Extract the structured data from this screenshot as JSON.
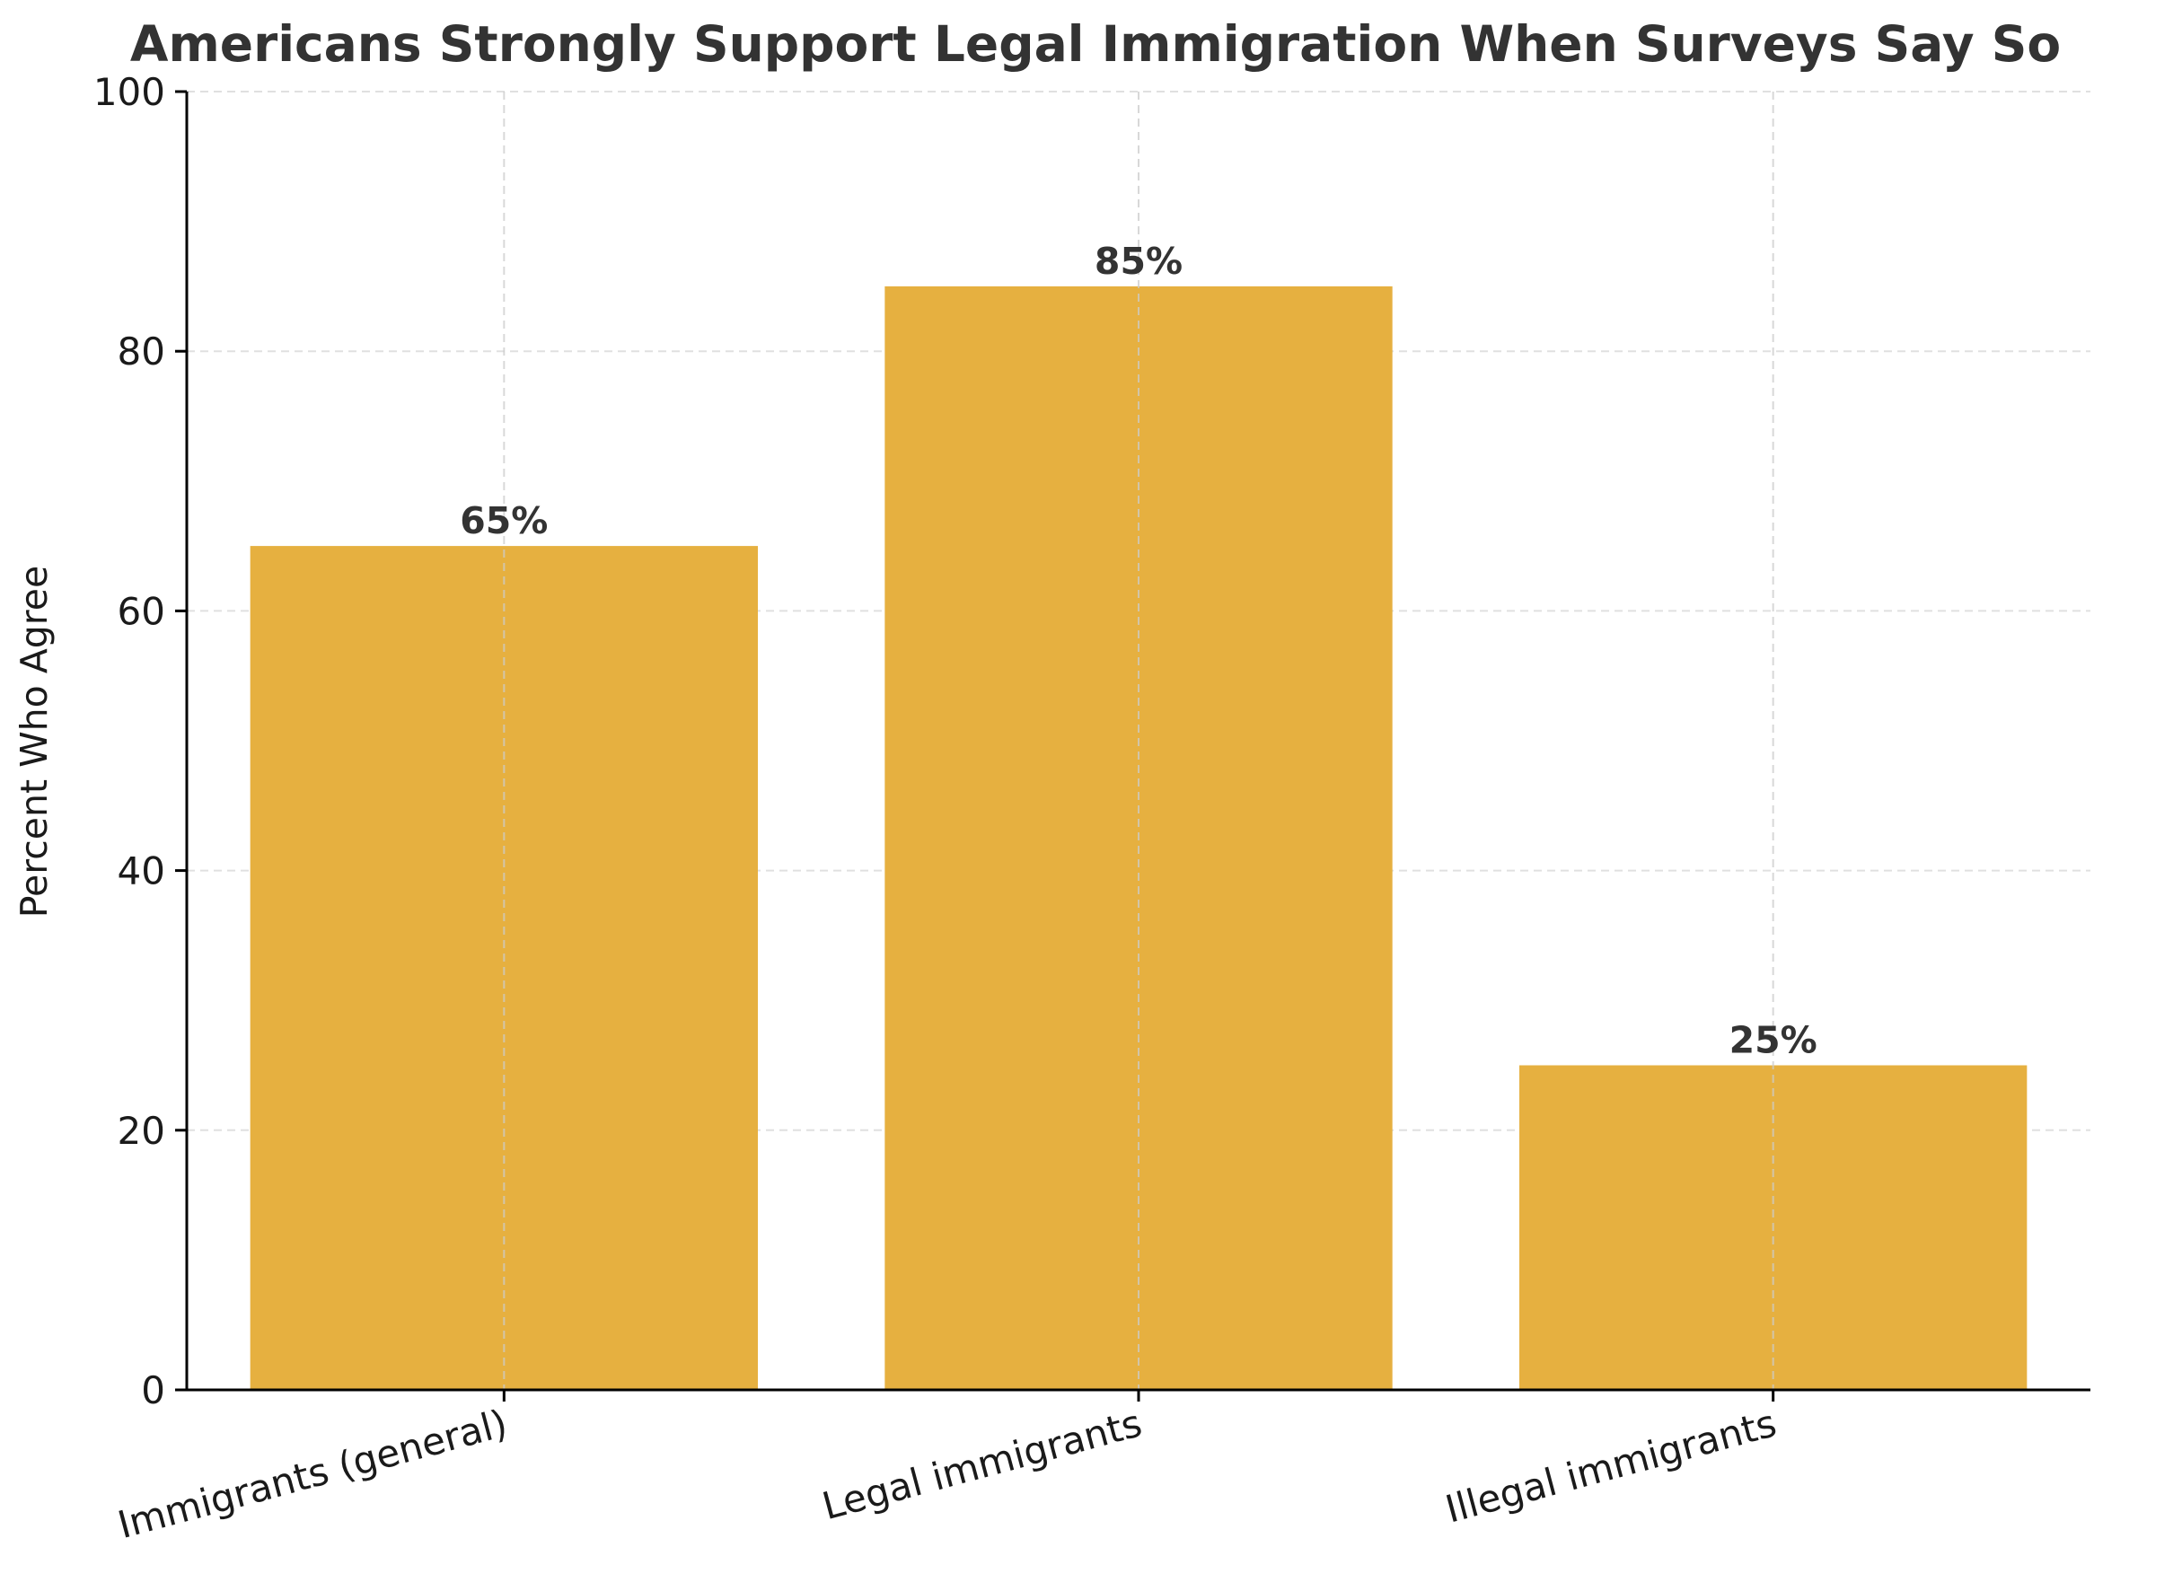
{
  "chart_data": {
    "type": "bar",
    "title": "Americans Strongly Support Legal Immigration When Surveys Say So",
    "xlabel": "",
    "ylabel": "Percent Who Agree",
    "categories": [
      "Immigrants (general)",
      "Legal immigrants",
      "Illegal immigrants"
    ],
    "values": [
      65,
      85,
      25
    ],
    "value_labels": [
      "65%",
      "85%",
      "25%"
    ],
    "ylim": [
      0,
      100
    ],
    "yticks": [
      0,
      20,
      40,
      60,
      80,
      100
    ],
    "ytick_labels": [
      "0",
      "20",
      "40",
      "60",
      "80",
      "100"
    ],
    "grid": true,
    "colors": {
      "bar": "#E6B040",
      "title": "#333333",
      "value_label": "#333333",
      "axis": "#000000",
      "tick_text": "#1a1a1a",
      "grid": "#cccccc"
    }
  }
}
